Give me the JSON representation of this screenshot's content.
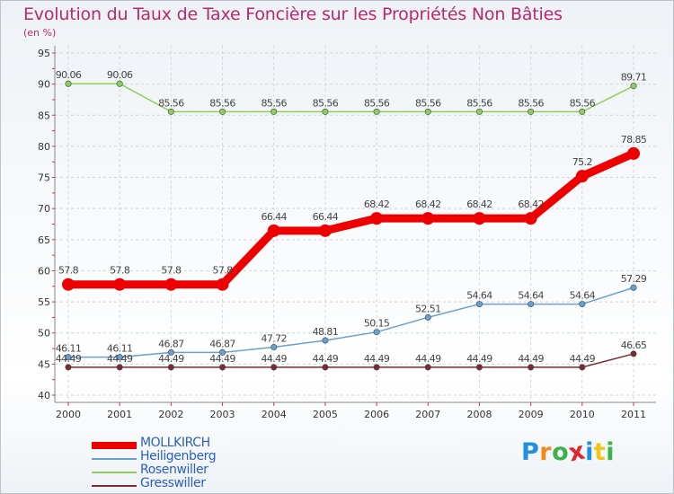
{
  "chart_data": {
    "type": "line",
    "title": "Evolution du Taux de Taxe Foncière sur les Propriétés Non Bâties",
    "subtitle": "(en %)",
    "x": [
      "2000",
      "2001",
      "2002",
      "2003",
      "2004",
      "2005",
      "2006",
      "2007",
      "2008",
      "2009",
      "2010",
      "2011"
    ],
    "ylim": [
      40,
      95
    ],
    "yticks": [
      "40",
      "45",
      "50",
      "55",
      "60",
      "65",
      "70",
      "75",
      "80",
      "85",
      "90",
      "95"
    ],
    "grid": true,
    "legend_position": "bottom-left",
    "series": [
      {
        "name": "Rosenwiller",
        "color": "#8fce5e",
        "values": [
          90.06,
          90.06,
          85.56,
          85.56,
          85.56,
          85.56,
          85.56,
          85.56,
          85.56,
          85.56,
          85.56,
          89.71
        ],
        "labels": [
          "90.06",
          "90.06",
          "85.56",
          "85.56",
          "85.56",
          "85.56",
          "85.56",
          "85.56",
          "85.56",
          "85.56",
          "85.56",
          "89.71"
        ]
      },
      {
        "name": "Heiligenberg",
        "color": "#6a9fd0",
        "values": [
          46.11,
          46.11,
          46.87,
          46.87,
          47.72,
          48.81,
          50.15,
          52.51,
          54.64,
          54.64,
          54.64,
          57.29
        ],
        "labels": [
          "46.11",
          "46.11",
          "46.87",
          "46.87",
          "47.72",
          "48.81",
          "50.15",
          "52.51",
          "54.64",
          "54.64",
          "54.64",
          "57.29"
        ]
      },
      {
        "name": "Gresswiller",
        "color": "#7d2a33",
        "values": [
          44.49,
          44.49,
          44.49,
          44.49,
          44.49,
          44.49,
          44.49,
          44.49,
          44.49,
          44.49,
          44.49,
          46.65
        ],
        "labels": [
          "44.49",
          "44.49",
          "44.49",
          "44.49",
          "44.49",
          "44.49",
          "44.49",
          "44.49",
          "44.49",
          "44.49",
          "44.49",
          "46.65"
        ]
      },
      {
        "name": "MOLLKIRCH",
        "color": "#ee0000",
        "highlight": true,
        "values": [
          57.8,
          57.8,
          57.8,
          57.8,
          66.44,
          66.44,
          68.42,
          68.42,
          68.42,
          68.42,
          75.2,
          78.85
        ],
        "labels": [
          "57.8",
          "57.8",
          "57.8",
          "57.8",
          "66.44",
          "66.44",
          "68.42",
          "68.42",
          "68.42",
          "68.42",
          "75.2",
          "78.85"
        ]
      }
    ],
    "legend_order": [
      "MOLLKIRCH",
      "Heiligenberg",
      "Rosenwiller",
      "Gresswiller"
    ]
  },
  "logo": {
    "letters": [
      "P",
      "r",
      "o",
      "x",
      "i",
      "t",
      "i"
    ],
    "colors": [
      "#1f8fe0",
      "#f08a1c",
      "#3cb34a",
      "#e0262d",
      "#1f8fe0",
      "#f0c419",
      "#3cb34a"
    ]
  }
}
